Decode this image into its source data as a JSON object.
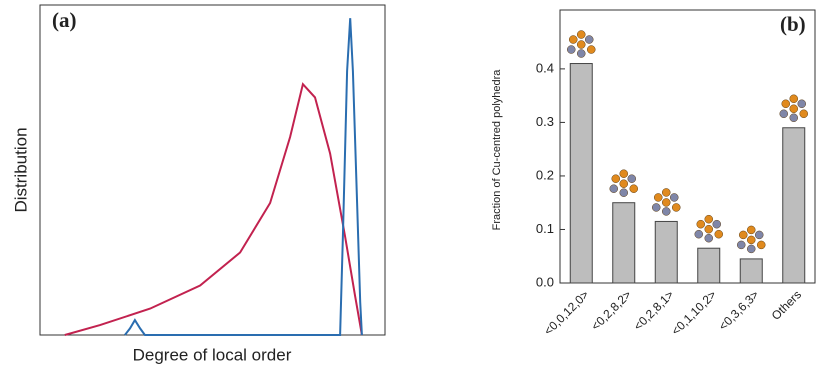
{
  "chart_data": [
    {
      "type": "line",
      "label": "(a)",
      "x_label": "Degree of local order",
      "y_label": "Distribution",
      "xlim": [
        0,
        1
      ],
      "ylim": [
        0,
        1
      ],
      "series": [
        {
          "color": "#c2224f",
          "x": [
            0.072,
            0.174,
            0.319,
            0.464,
            0.58,
            0.667,
            0.725,
            0.762,
            0.797,
            0.841,
            0.884,
            0.913,
            0.933
          ],
          "values": [
            0,
            0.03,
            0.08,
            0.15,
            0.25,
            0.4,
            0.6,
            0.76,
            0.72,
            0.55,
            0.3,
            0.12,
            0
          ]
        },
        {
          "color": "#2a6db0",
          "x": [
            0.246,
            0.261,
            0.275,
            0.29,
            0.304,
            0.87,
            0.878,
            0.89,
            0.899,
            0.907,
            0.919,
            0.928,
            0.933
          ],
          "values": [
            0,
            0.02,
            0.045,
            0.02,
            0,
            0,
            0.3,
            0.8,
            0.96,
            0.8,
            0.4,
            0.1,
            0
          ]
        }
      ]
    },
    {
      "type": "bar",
      "label": "(b)",
      "y_label": "Fraction of Cu-centred polyhedra",
      "categories": [
        "<0,0,12,0>",
        "<0,2,8,2>",
        "<0,2,8,1>",
        "<0,1,10,2>",
        "<0,3,6,3>",
        "Others"
      ],
      "values": [
        0.41,
        0.15,
        0.115,
        0.065,
        0.045,
        0.29
      ],
      "color": "#bdbdbd",
      "ylim": [
        0,
        0.51
      ],
      "yticks": [
        {
          "value": 0,
          "label": "0.0"
        },
        0.1,
        0.2,
        0.3,
        0.4
      ]
    }
  ]
}
